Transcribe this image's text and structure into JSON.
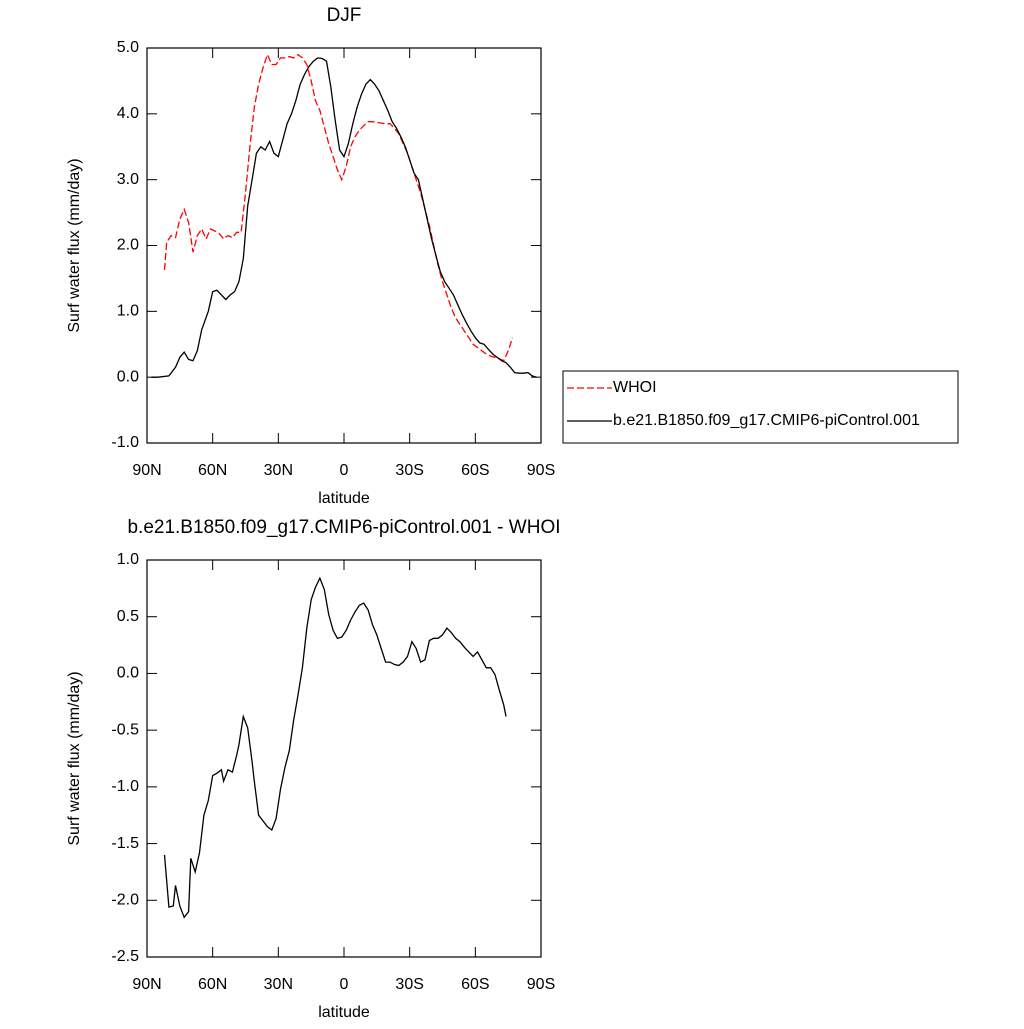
{
  "chart_data": [
    {
      "type": "line",
      "title": "DJF",
      "xlabel": "latitude",
      "ylabel": "Surf water flux (mm/day)",
      "xlim": [
        90,
        -90
      ],
      "xticks": [
        {
          "value": 90,
          "label": "90N"
        },
        {
          "value": 60,
          "label": "60N"
        },
        {
          "value": 30,
          "label": "30N"
        },
        0,
        {
          "value": -30,
          "label": "30S"
        },
        {
          "value": -60,
          "label": "60S"
        },
        {
          "value": -90,
          "label": "90S"
        }
      ],
      "ylim": [
        -1,
        5
      ],
      "yticks": [
        {
          "value": 5,
          "label": "5.0"
        },
        {
          "value": 4,
          "label": "4.0"
        },
        {
          "value": 3,
          "label": "3.0"
        },
        {
          "value": 2,
          "label": "2.0"
        },
        {
          "value": 1,
          "label": "1.0"
        },
        {
          "value": 0,
          "label": "0.0"
        },
        {
          "value": -1,
          "label": "-1.0"
        }
      ],
      "legend": "right",
      "series": [
        {
          "name": "WHOI",
          "color": "#ff0000",
          "dash": true,
          "x": [
            82,
            81,
            79,
            77,
            75,
            73,
            71,
            69,
            67,
            65,
            63,
            61,
            59,
            57,
            55,
            53,
            51,
            49,
            47,
            45,
            43,
            41,
            39,
            37,
            35,
            33,
            31,
            29,
            27,
            25,
            23,
            21,
            19,
            17,
            15,
            13,
            11,
            9,
            7,
            5,
            3,
            1,
            -1,
            -3,
            -5,
            -7,
            -9,
            -11,
            -13,
            -15,
            -17,
            -19,
            -21,
            -23,
            -25,
            -27,
            -29,
            -31,
            -33,
            -35,
            -37,
            -39,
            -41,
            -43,
            -45,
            -47,
            -49,
            -51,
            -53,
            -55,
            -57,
            -59,
            -61,
            -63,
            -65,
            -67,
            -69,
            -71,
            -73,
            -75,
            -77
          ],
          "values": [
            1.63,
            2.05,
            2.15,
            2.12,
            2.4,
            2.55,
            2.35,
            1.9,
            2.15,
            2.25,
            2.1,
            2.25,
            2.22,
            2.18,
            2.1,
            2.15,
            2.12,
            2.2,
            2.2,
            2.8,
            3.5,
            4.1,
            4.45,
            4.7,
            4.9,
            4.75,
            4.75,
            4.85,
            4.85,
            4.87,
            4.85,
            4.9,
            4.85,
            4.75,
            4.5,
            4.2,
            4.05,
            3.8,
            3.55,
            3.35,
            3.15,
            3.0,
            3.2,
            3.5,
            3.65,
            3.75,
            3.82,
            3.88,
            3.88,
            3.87,
            3.86,
            3.85,
            3.85,
            3.78,
            3.7,
            3.55,
            3.4,
            3.2,
            3.0,
            2.8,
            2.55,
            2.3,
            2.0,
            1.7,
            1.45,
            1.25,
            1.05,
            0.9,
            0.8,
            0.7,
            0.6,
            0.5,
            0.45,
            0.4,
            0.35,
            0.32,
            0.3,
            0.28,
            0.25,
            0.4,
            0.6
          ]
        },
        {
          "name": "b.e21.B1850.f09_g17.CMIP6-piControl.001",
          "color": "#000000",
          "dash": false,
          "x": [
            88,
            85,
            80,
            77,
            75,
            73,
            71,
            69,
            67,
            65,
            62,
            60,
            58,
            56,
            54,
            52,
            50,
            48,
            46,
            44,
            42,
            40,
            38,
            36,
            34,
            32,
            30,
            28,
            26,
            24,
            22,
            20,
            18,
            16,
            14,
            12,
            10,
            8,
            6,
            4,
            2,
            0,
            -2,
            -4,
            -6,
            -8,
            -10,
            -12,
            -14,
            -16,
            -18,
            -20,
            -22,
            -24,
            -26,
            -28,
            -30,
            -32,
            -34,
            -36,
            -38,
            -40,
            -42,
            -44,
            -46,
            -48,
            -50,
            -52,
            -54,
            -56,
            -58,
            -60,
            -62,
            -64,
            -66,
            -68,
            -70,
            -72,
            -74,
            -76,
            -78,
            -80,
            -82,
            -84,
            -86,
            -88
          ],
          "values": [
            0.0,
            0.0,
            0.02,
            0.15,
            0.3,
            0.38,
            0.27,
            0.25,
            0.4,
            0.72,
            1.0,
            1.3,
            1.32,
            1.25,
            1.18,
            1.25,
            1.3,
            1.45,
            1.8,
            2.6,
            3.0,
            3.4,
            3.5,
            3.45,
            3.58,
            3.4,
            3.35,
            3.6,
            3.85,
            4.0,
            4.2,
            4.45,
            4.6,
            4.72,
            4.8,
            4.85,
            4.84,
            4.8,
            4.4,
            3.9,
            3.45,
            3.35,
            3.55,
            3.85,
            4.1,
            4.3,
            4.45,
            4.52,
            4.45,
            4.35,
            4.2,
            4.05,
            3.88,
            3.78,
            3.65,
            3.5,
            3.3,
            3.1,
            3.0,
            2.7,
            2.4,
            2.1,
            1.85,
            1.6,
            1.45,
            1.35,
            1.25,
            1.1,
            0.95,
            0.82,
            0.7,
            0.6,
            0.52,
            0.5,
            0.42,
            0.35,
            0.3,
            0.25,
            0.22,
            0.15,
            0.07,
            0.06,
            0.06,
            0.07,
            0.02,
            0.0
          ]
        }
      ]
    },
    {
      "type": "line",
      "title": "b.e21.B1850.f09_g17.CMIP6-piControl.001 - WHOI",
      "xlabel": "latitude",
      "ylabel": "Surf water flux (mm/day)",
      "xlim": [
        90,
        -90
      ],
      "xticks": [
        {
          "value": 90,
          "label": "90N"
        },
        {
          "value": 60,
          "label": "60N"
        },
        {
          "value": 30,
          "label": "30N"
        },
        0,
        {
          "value": -30,
          "label": "30S"
        },
        {
          "value": -60,
          "label": "60S"
        },
        {
          "value": -90,
          "label": "90S"
        }
      ],
      "ylim": [
        -2.5,
        1
      ],
      "yticks": [
        {
          "value": 1,
          "label": "1.0"
        },
        0.5,
        {
          "value": 0,
          "label": "0.0"
        },
        -0.5,
        {
          "value": -1,
          "label": "-1.0"
        },
        -1.5,
        {
          "value": -2,
          "label": "-2.0"
        },
        -2.5
      ],
      "series": [
        {
          "color": "#000000",
          "dash": false,
          "x": [
            82,
            80,
            78,
            77,
            75,
            73,
            71,
            70,
            68,
            66,
            64,
            62,
            60,
            58,
            56,
            55,
            53,
            51,
            49,
            48,
            46,
            44,
            42,
            41,
            39,
            37,
            35,
            33,
            31,
            29,
            27,
            25,
            23,
            21,
            19,
            17,
            15,
            13,
            11,
            9,
            7,
            5,
            3,
            1,
            -1,
            -3,
            -5,
            -7,
            -9,
            -11,
            -13,
            -15,
            -17,
            -19,
            -21,
            -23,
            -25,
            -27,
            -29,
            -31,
            -33,
            -35,
            -37,
            -39,
            -41,
            -43,
            -45,
            -47,
            -49,
            -51,
            -53,
            -55,
            -57,
            -59,
            -61,
            -63,
            -65,
            -67,
            -69,
            -71,
            -73,
            -74
          ],
          "values": [
            -1.6,
            -2.06,
            -2.05,
            -1.87,
            -2.05,
            -2.15,
            -2.1,
            -1.63,
            -1.75,
            -1.58,
            -1.25,
            -1.12,
            -0.9,
            -0.88,
            -0.85,
            -0.95,
            -0.85,
            -0.87,
            -0.72,
            -0.63,
            -0.38,
            -0.48,
            -0.78,
            -0.95,
            -1.25,
            -1.3,
            -1.35,
            -1.38,
            -1.28,
            -1.02,
            -0.83,
            -0.68,
            -0.41,
            -0.19,
            0.05,
            0.4,
            0.65,
            0.76,
            0.84,
            0.74,
            0.52,
            0.38,
            0.31,
            0.32,
            0.38,
            0.47,
            0.54,
            0.6,
            0.62,
            0.56,
            0.43,
            0.34,
            0.22,
            0.1,
            0.1,
            0.08,
            0.07,
            0.1,
            0.15,
            0.28,
            0.22,
            0.1,
            0.12,
            0.29,
            0.31,
            0.31,
            0.34,
            0.4,
            0.36,
            0.31,
            0.28,
            0.23,
            0.19,
            0.15,
            0.19,
            0.12,
            0.05,
            0.05,
            -0.01,
            -0.15,
            -0.28,
            -0.38
          ]
        }
      ]
    }
  ]
}
